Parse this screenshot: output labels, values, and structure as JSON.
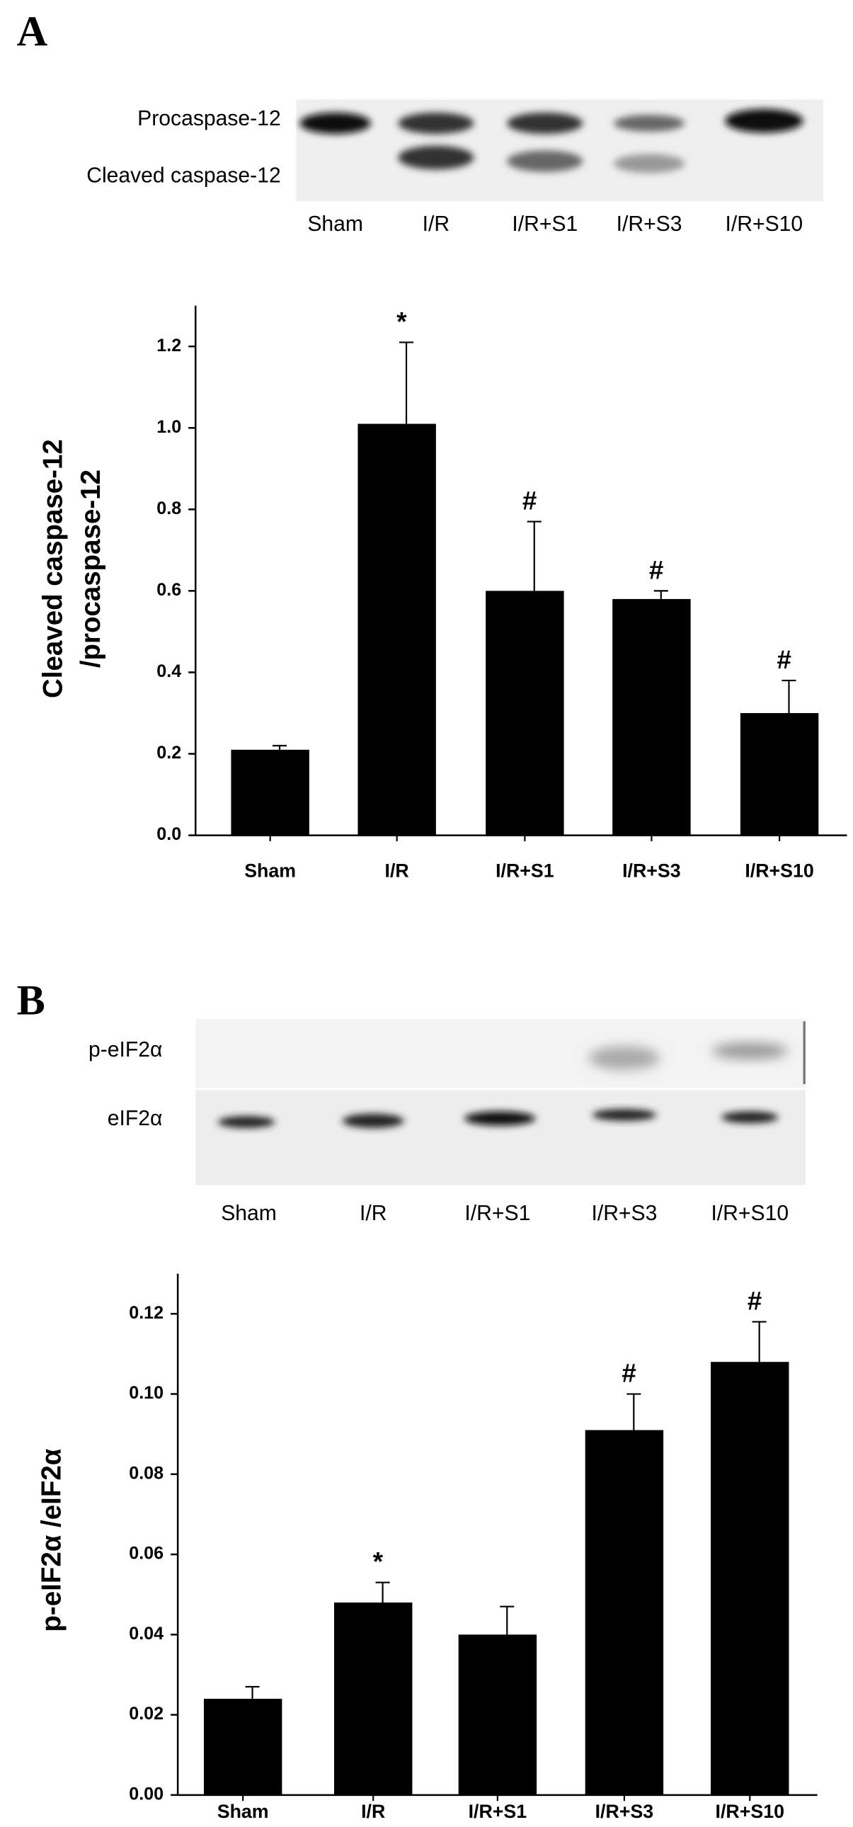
{
  "chart_data": [
    {
      "type": "bar",
      "panel": "A",
      "blot": {
        "rows": [
          "Procaspase-12",
          "Cleaved caspase-12"
        ],
        "lanes": [
          "Sham",
          "I/R",
          "I/R+S1",
          "I/R+S3",
          "I/R+S10"
        ]
      },
      "ylabel": [
        "Cleaved caspase-12",
        "/procaspase-12"
      ],
      "categories": [
        "Sham",
        "I/R",
        "I/R+S1",
        "I/R+S3",
        "I/R+S10"
      ],
      "values": [
        0.21,
        1.01,
        0.6,
        0.58,
        0.3
      ],
      "errors": [
        0.01,
        0.2,
        0.17,
        0.02,
        0.08
      ],
      "annotations": [
        null,
        "*",
        "#",
        "#",
        "#"
      ],
      "color": "#000000",
      "ylim": [
        0,
        1.3
      ],
      "yticks": [
        {
          "value": 0,
          "label": "0.0"
        },
        0.2,
        0.4,
        0.6,
        0.8,
        {
          "value": 1,
          "label": "1.0"
        },
        1.2
      ]
    },
    {
      "type": "bar",
      "panel": "B",
      "blot": {
        "rows": [
          "p-eIF2α",
          "eIF2α"
        ],
        "lanes": [
          "Sham",
          "I/R",
          "I/R+S1",
          "I/R+S3",
          "I/R+S10"
        ]
      },
      "ylabel": [
        "p-eIF2α /eIF2α"
      ],
      "categories": [
        "Sham",
        "I/R",
        "I/R+S1",
        "I/R+S3",
        "I/R+S10"
      ],
      "values": [
        0.024,
        0.048,
        0.04,
        0.091,
        0.108
      ],
      "errors": [
        0.003,
        0.005,
        0.007,
        0.009,
        0.01
      ],
      "annotations": [
        null,
        "*",
        null,
        "#",
        "#"
      ],
      "color": "#000000",
      "ylim": [
        0,
        0.13
      ],
      "yticks": [
        {
          "value": 0,
          "label": "0.00"
        },
        0.02,
        0.04,
        0.06,
        0.08,
        {
          "value": 0.1,
          "label": "0.10"
        },
        0.12
      ]
    }
  ]
}
